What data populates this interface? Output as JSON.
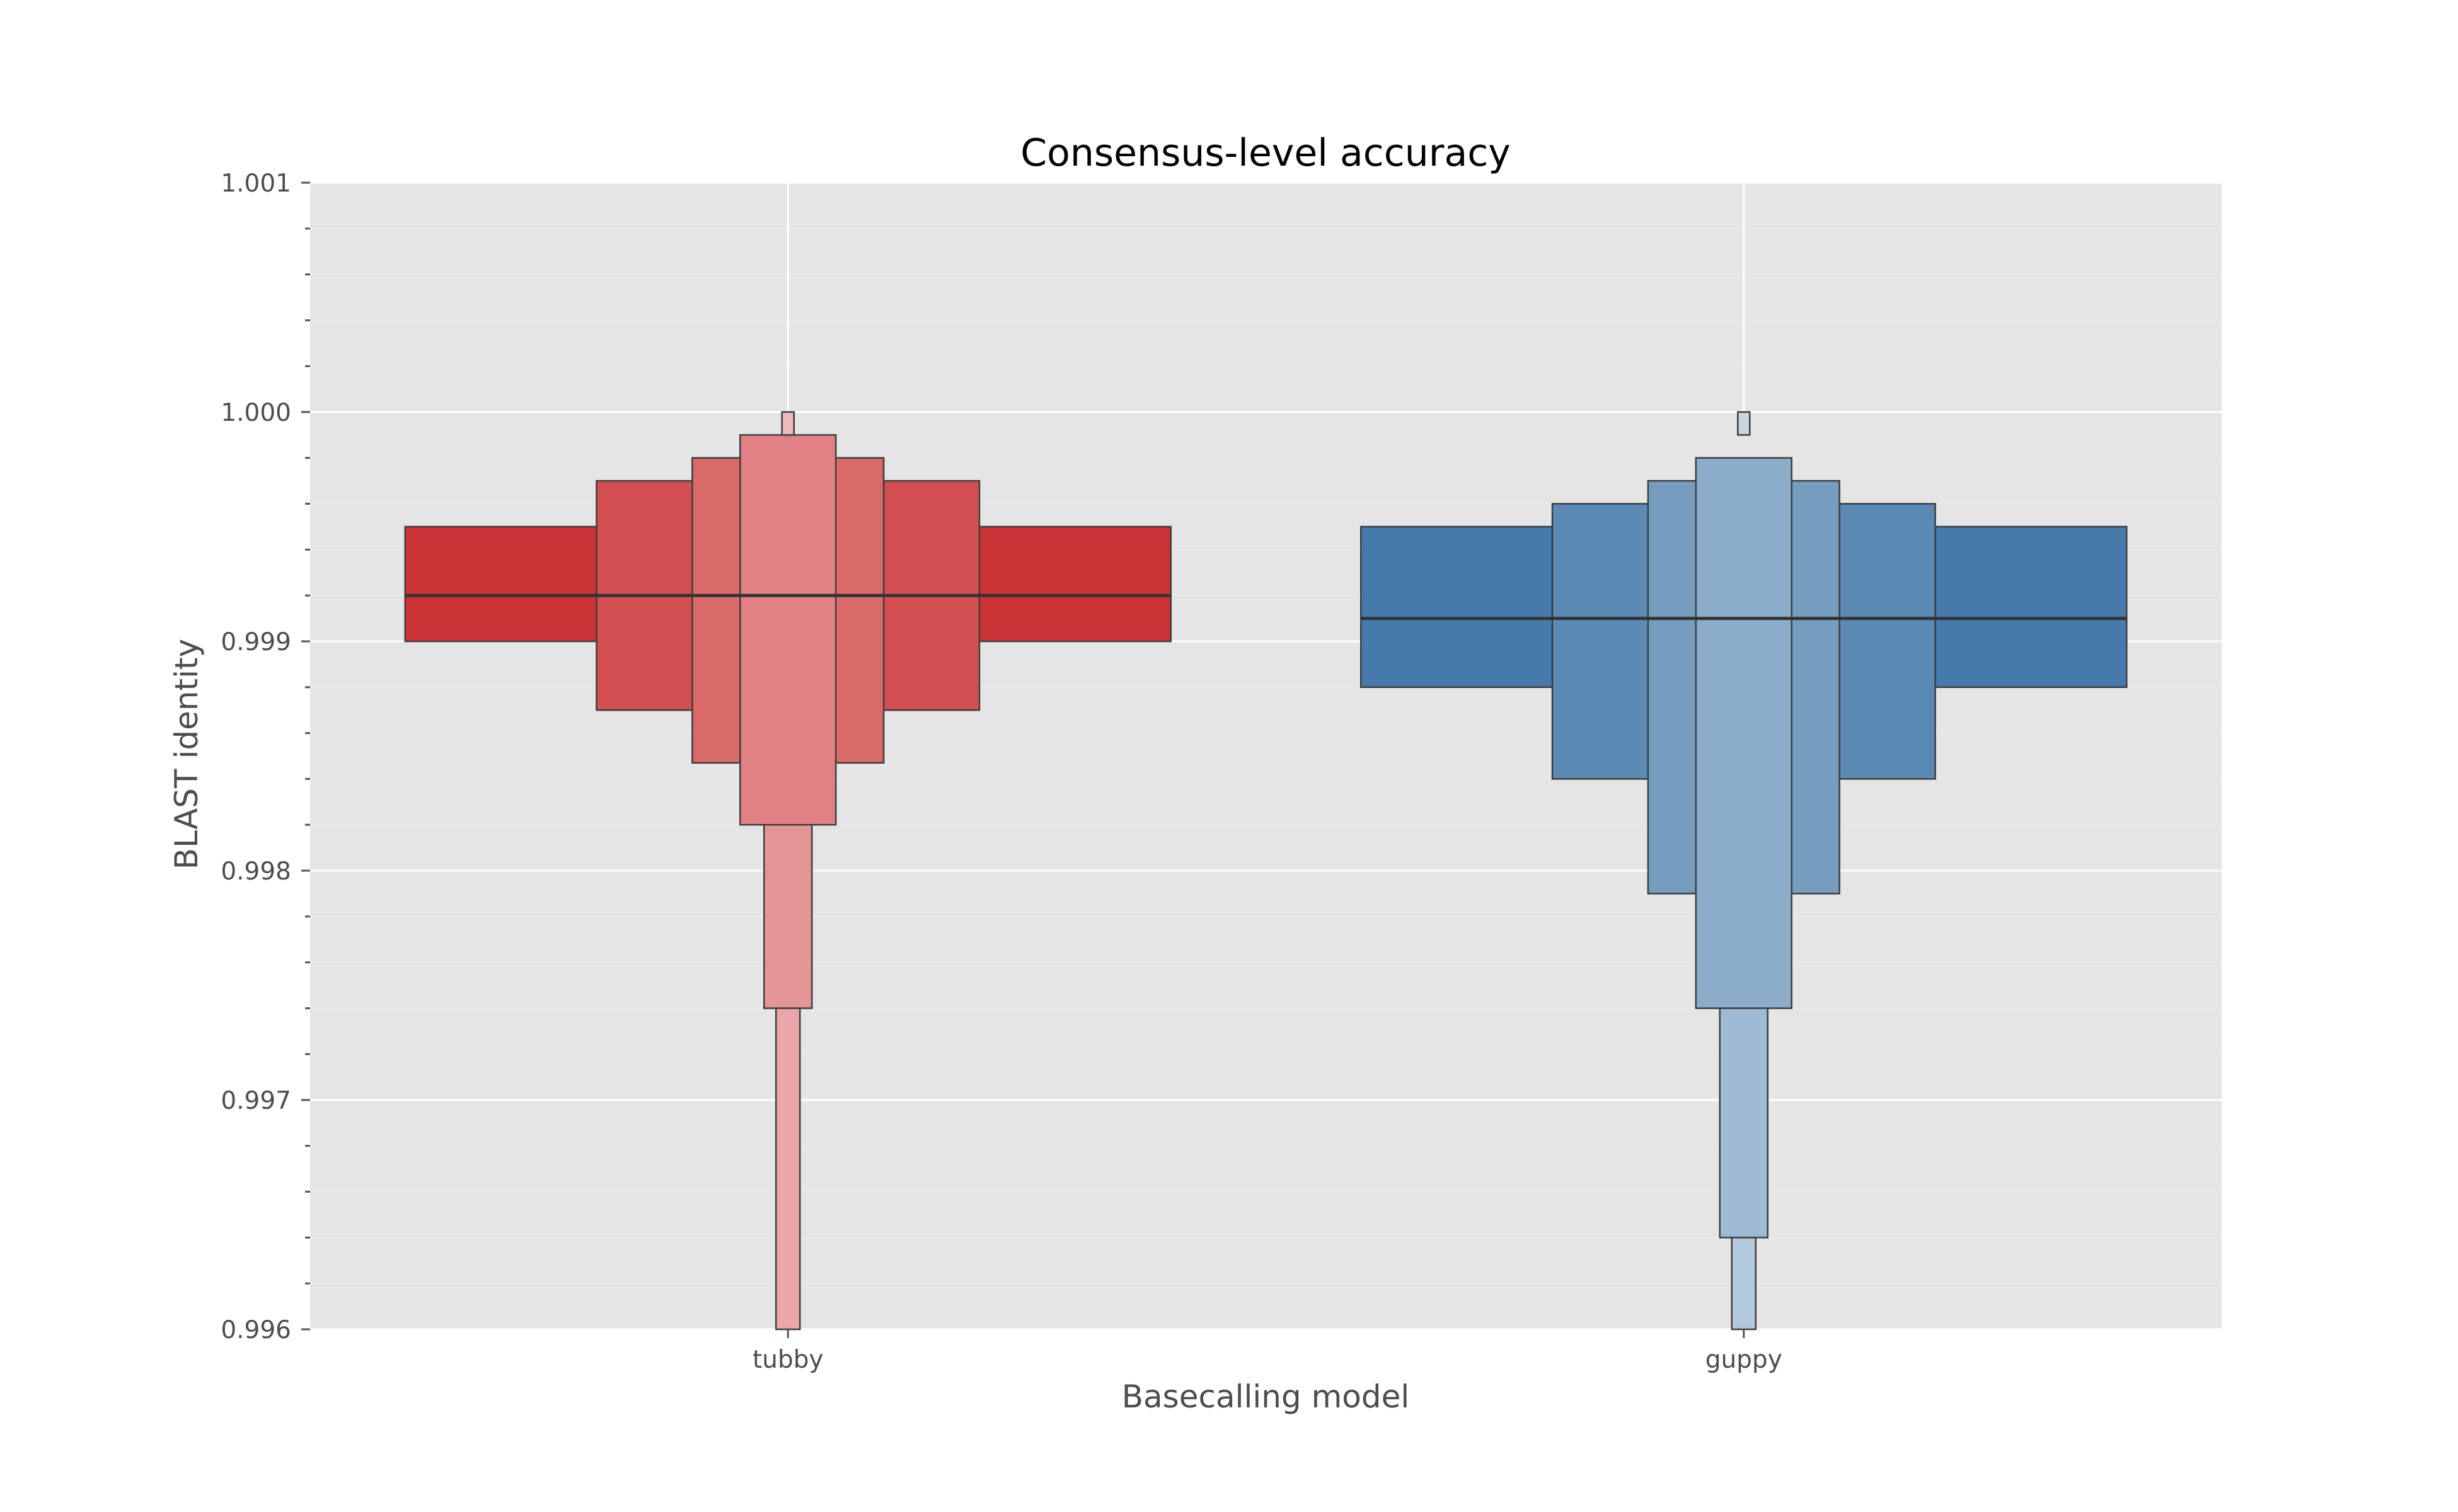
{
  "chart_data": {
    "type": "boxen",
    "title": "Consensus-level accuracy",
    "xlabel": "Basecalling model",
    "ylabel": "BLAST identity",
    "ylim": [
      0.996,
      1.001
    ],
    "yticks": [
      0.996,
      0.997,
      0.998,
      0.999,
      1.0,
      1.001
    ],
    "ytick_labels": [
      "0.996",
      "0.997",
      "0.998",
      "0.999",
      "1.000",
      "1.001"
    ],
    "y_minor_step": 0.0002,
    "grid": true,
    "background": "#e5e5e5",
    "categories": [
      "tubby",
      "guppy"
    ],
    "series": [
      {
        "category": "tubby",
        "median": 0.9992,
        "color": "#d32f2f",
        "whisker_top": 1.001,
        "boxes": [
          {
            "level": 1,
            "low": 0.999,
            "high": 0.9995,
            "width_frac": 1.0,
            "color": "#cc3336"
          },
          {
            "level": 2,
            "low": 0.9987,
            "high": 0.9997,
            "width_frac": 0.5,
            "color": "#d24e51"
          },
          {
            "level": 3,
            "low": 0.99847,
            "high": 0.9998,
            "width_frac": 0.25,
            "color": "#da696a"
          },
          {
            "level": 4,
            "low": 0.9982,
            "high": 0.9999,
            "width_frac": 0.125,
            "color": "#e08185"
          },
          {
            "level": 5,
            "low": 0.9974,
            "high": 0.9982,
            "width_frac": 0.0625,
            "color": "#e69596"
          },
          {
            "level": 6,
            "low": 0.996,
            "high": 0.9974,
            "width_frac": 0.03125,
            "color": "#e9a7a9"
          },
          {
            "level": 7,
            "low": 0.9999,
            "high": 1.0,
            "width_frac": 0.015625,
            "color": "#eebbbc"
          }
        ]
      },
      {
        "category": "guppy",
        "median": 0.9991,
        "color": "#4a7aa8",
        "whisker_top": 1.001,
        "boxes": [
          {
            "level": 1,
            "low": 0.9988,
            "high": 0.9995,
            "width_frac": 1.0,
            "color": "#457aaa"
          },
          {
            "level": 2,
            "low": 0.9984,
            "high": 0.9996,
            "width_frac": 0.5,
            "color": "#5b8ab4"
          },
          {
            "level": 3,
            "low": 0.9979,
            "high": 0.9997,
            "width_frac": 0.25,
            "color": "#749dc0"
          },
          {
            "level": 4,
            "low": 0.9974,
            "high": 0.9998,
            "width_frac": 0.125,
            "color": "#8badca"
          },
          {
            "level": 5,
            "low": 0.9964,
            "high": 0.9974,
            "width_frac": 0.0625,
            "color": "#9fbbd3"
          },
          {
            "level": 6,
            "low": 0.996,
            "high": 0.9964,
            "width_frac": 0.03125,
            "color": "#b2c8dc"
          },
          {
            "level": 7,
            "low": 0.9999,
            "high": 1.0,
            "width_frac": 0.015625,
            "color": "#c4d5e4"
          }
        ]
      }
    ]
  }
}
